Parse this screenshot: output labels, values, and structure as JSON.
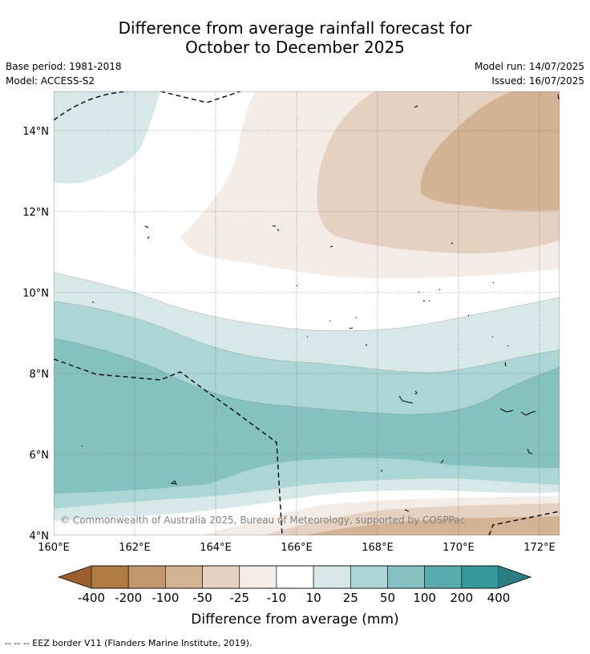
{
  "title_line1": "Difference from average rainfall forecast for",
  "title_line2": "October to December 2025",
  "base_period": "Base period: 1981-2018",
  "model": "Model: ACCESS-S2",
  "model_run": "Model run: 14/07/2025",
  "issued": "Issued: 16/07/2025",
  "copyright": "© Commonwealth of Australia 2025, Bureau of Meteorology, supported by COSPPac",
  "lat_ticks": [
    "14°N",
    "12°N",
    "10°N",
    "8°N",
    "6°N",
    "4°N"
  ],
  "lon_ticks": [
    "160°E",
    "162°E",
    "164°E",
    "166°E",
    "168°E",
    "170°E",
    "172°E"
  ],
  "colorbar": {
    "label": "Difference from average (mm)",
    "tick_labels": [
      "-400",
      "-200",
      "-100",
      "-50",
      "-25",
      "-10",
      "10",
      "25",
      "50",
      "100",
      "200",
      "400"
    ],
    "colors": [
      "#9a5f2c",
      "#b07a43",
      "#c2976d",
      "#d3b394",
      "#e4d1c0",
      "#f4ece6",
      "#ffffff",
      "#d6e9e8",
      "#acd6d6",
      "#84c2c2",
      "#58acac",
      "#34999a",
      "#2c7f80"
    ]
  },
  "legend_note": "--  --  -- EEZ border V11 (Flanders Marine Institute, 2019)."
}
